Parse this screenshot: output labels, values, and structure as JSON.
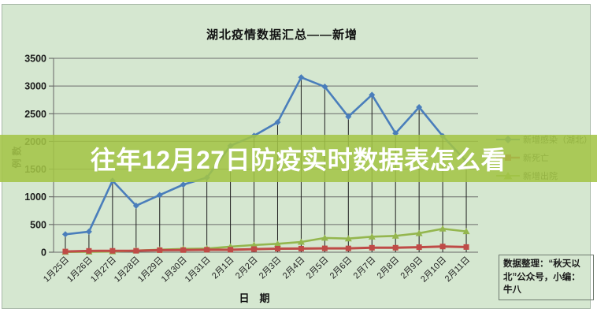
{
  "overlay": {
    "text": "往年12月27日防疫实时数据表怎么看"
  },
  "source_box": {
    "text": "数据整理：“秋天以北”公众号，小编：牛八"
  },
  "colors": {
    "background": "#d5e7d0",
    "band": "#a3c446",
    "band_text": "#ffffff",
    "gridline": "#6b6b6b",
    "drop_line": "#1f1f1f",
    "series_infected": "#4a7ebb",
    "series_deaths": "#bf4b47",
    "series_discharged": "#94b64e"
  },
  "chart_data": {
    "type": "line",
    "title": "湖北疫情数据汇总——新增",
    "xlabel": "日　期",
    "ylabel": "例数",
    "ylim": [
      0,
      3500
    ],
    "ytick_step": 500,
    "grid": true,
    "drop_lines": true,
    "legend_position": "right",
    "categories": [
      "1月25日",
      "1月26日",
      "1月27日",
      "1月28日",
      "1月29日",
      "1月30日",
      "1月31日",
      "2月1日",
      "2月2日",
      "2月3日",
      "2月4日",
      "2月5日",
      "2月6日",
      "2月7日",
      "2月8日",
      "2月9日",
      "2月10日",
      "2月11日"
    ],
    "series": [
      {
        "name": "新增感染（湖北）",
        "color": "#4a7ebb",
        "marker": "diamond",
        "values": [
          323,
          371,
          1291,
          840,
          1032,
          1220,
          1347,
          1921,
          2103,
          2345,
          3156,
          2987,
          2447,
          2841,
          2147,
          2618,
          2097,
          1638
        ]
      },
      {
        "name": "新死亡",
        "color": "#bf4b47",
        "marker": "square",
        "values": [
          13,
          24,
          25,
          26,
          37,
          39,
          45,
          45,
          56,
          64,
          65,
          70,
          69,
          81,
          81,
          91,
          103,
          94
        ]
      },
      {
        "name": "新增出院",
        "color": "#94b64e",
        "marker": "triangle",
        "values": [
          5,
          8,
          12,
          30,
          45,
          60,
          65,
          100,
          130,
          152,
          185,
          258,
          246,
          280,
          295,
          342,
          423,
          375
        ]
      }
    ]
  }
}
